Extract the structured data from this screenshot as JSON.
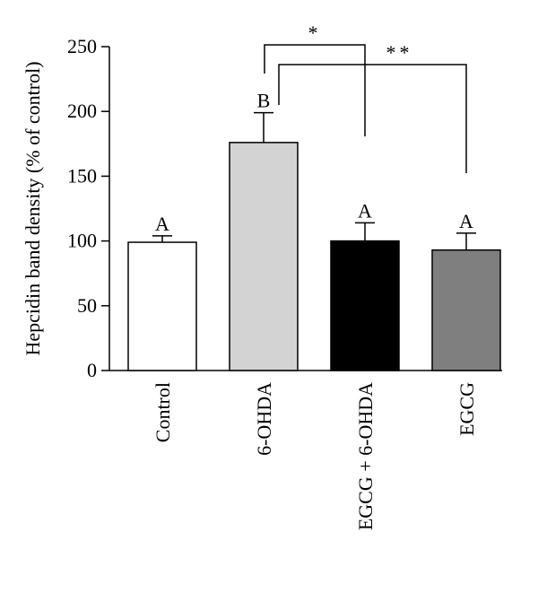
{
  "chart_data": {
    "type": "bar",
    "ylabel": "Hepcidin band density (% of control)",
    "ylim": [
      0,
      250
    ],
    "yticks": [
      0,
      50,
      100,
      150,
      200,
      250
    ],
    "categories": [
      "Control",
      "6-OHDA",
      "EGCG + 6-OHDA",
      "EGCG"
    ],
    "values": [
      99,
      176,
      100,
      93
    ],
    "errors": [
      5,
      23,
      14,
      13
    ],
    "colors": [
      "#ffffff",
      "#d3d3d3",
      "#000000",
      "#7f7f7f"
    ],
    "letters": [
      "A",
      "B",
      "A",
      "A"
    ],
    "significance": [
      {
        "from": 1,
        "to": 2,
        "label": "*"
      },
      {
        "from": 1,
        "to": 3,
        "label": "**"
      }
    ],
    "grid": false
  }
}
